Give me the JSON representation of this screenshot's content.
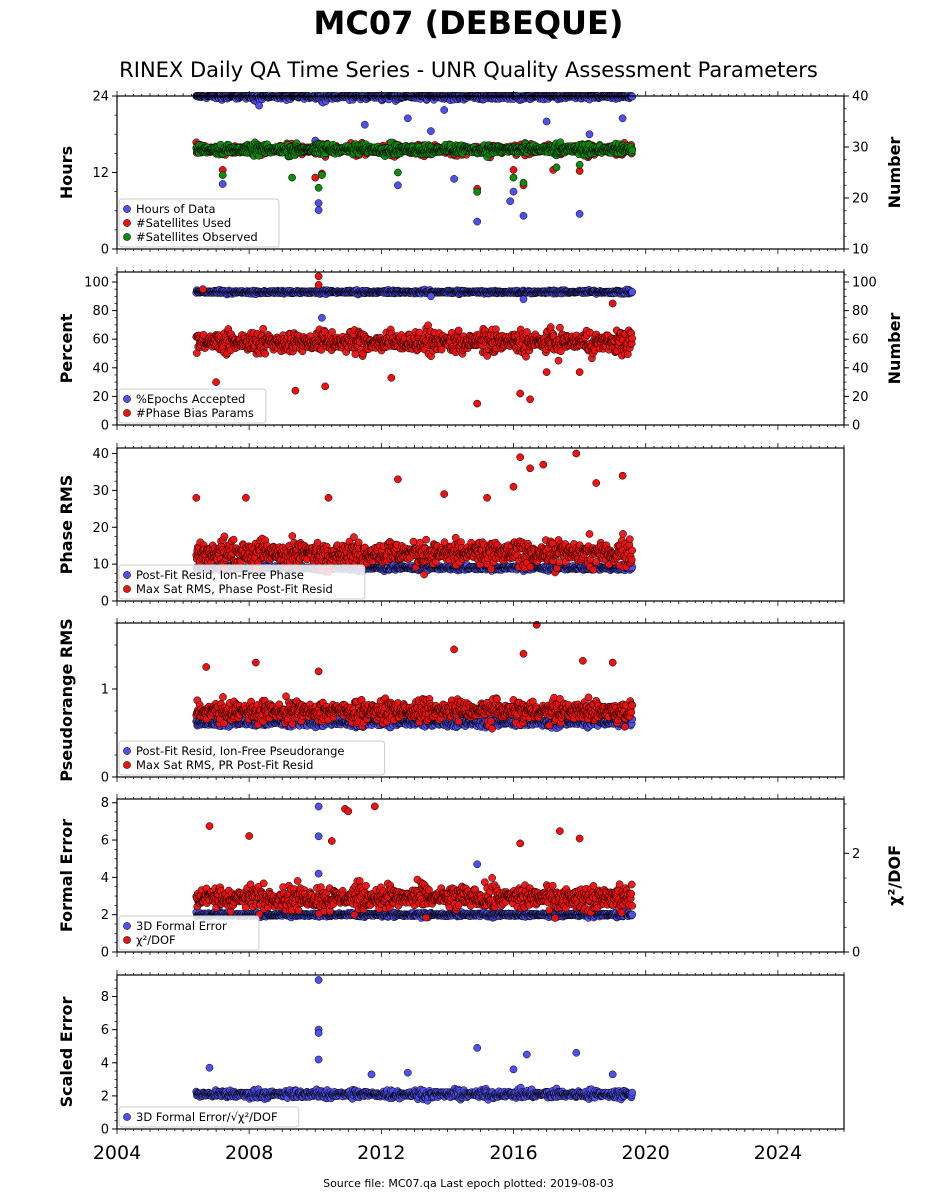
{
  "title": "MC07 (DEBEQUE)",
  "subtitle": "RINEX Daily QA Time Series - UNR Quality Assessment Parameters",
  "footer": "Source file: MC07.qa Last epoch plotted: 2019-08-03",
  "colors": {
    "blue": "#5050f0",
    "red": "#ee1111",
    "green": "#0e8a0e",
    "edge": "#000000"
  },
  "chart_data": [
    {
      "type": "scatter",
      "ylabel": "Hours",
      "ylabel_right": "Number",
      "ylim": [
        0,
        24
      ],
      "yticks": [
        0,
        12,
        24
      ],
      "ylim_right": [
        10,
        40
      ],
      "yticks_right": [
        10,
        20,
        30,
        40
      ],
      "legend": "bottom-left",
      "series": [
        {
          "name": "Hours of Data",
          "axis": "left",
          "color": "blue",
          "baseline": 24,
          "spread": 0.6,
          "outliers": [
            [
              2010.1,
              7.2
            ],
            [
              2010.1,
              6.1
            ],
            [
              2014.9,
              4.3
            ],
            [
              2016.3,
              5.2
            ],
            [
              2018.0,
              5.5
            ],
            [
              2007.2,
              10.2
            ],
            [
              2012.5,
              10.0
            ],
            [
              2014.2,
              11.0
            ],
            [
              2016.0,
              9.0
            ],
            [
              2015.9,
              7.5
            ],
            [
              2010.0,
              17.0
            ],
            [
              2011.5,
              19.5
            ],
            [
              2013.5,
              18.5
            ],
            [
              2017.0,
              20.0
            ],
            [
              2018.3,
              18.0
            ],
            [
              2019.3,
              20.5
            ],
            [
              2008.3,
              22.5
            ],
            [
              2013.9,
              21.8
            ],
            [
              2012.8,
              20.5
            ]
          ]
        },
        {
          "name": "#Satellites Used",
          "axis": "right",
          "color": "red",
          "baseline": 29.5,
          "spread": 1.0,
          "outliers": [
            [
              2007.2,
              25.5
            ],
            [
              2010.2,
              24.8
            ],
            [
              2014.9,
              21.8
            ],
            [
              2016.0,
              25.5
            ],
            [
              2016.3,
              22.5
            ],
            [
              2017.2,
              25.5
            ],
            [
              2018.0,
              25.3
            ],
            [
              2010.0,
              24.0
            ]
          ]
        },
        {
          "name": "#Satellites Observed",
          "axis": "right",
          "color": "green",
          "baseline": 29.5,
          "spread": 1.0,
          "outliers": [
            [
              2007.2,
              24.5
            ],
            [
              2009.3,
              24.0
            ],
            [
              2010.2,
              24.5
            ],
            [
              2012.5,
              25.0
            ],
            [
              2014.9,
              21.2
            ],
            [
              2016.0,
              24.0
            ],
            [
              2016.3,
              23.0
            ],
            [
              2017.3,
              26.0
            ],
            [
              2018.0,
              26.5
            ],
            [
              2010.1,
              22.0
            ]
          ]
        }
      ]
    },
    {
      "type": "scatter",
      "ylabel": "Percent",
      "ylabel_right": "Number",
      "ylim": [
        0,
        107
      ],
      "yticks": [
        0,
        20,
        40,
        60,
        80,
        100
      ],
      "ylim_right": [
        0,
        107
      ],
      "yticks_right": [
        0,
        20,
        40,
        60,
        80,
        100
      ],
      "legend": "bottom-left",
      "series": [
        {
          "name": "%Epochs Accepted",
          "axis": "left",
          "color": "blue",
          "baseline": 93,
          "spread": 1.2,
          "outliers": [
            [
              2010.2,
              75
            ],
            [
              2013.5,
              90
            ],
            [
              2016.3,
              88
            ]
          ]
        },
        {
          "name": "#Phase Bias Params",
          "axis": "right",
          "color": "red",
          "baseline": 58,
          "spread": 8,
          "outliers": [
            [
              2010.1,
              104
            ],
            [
              2007.0,
              30
            ],
            [
              2009.4,
              24
            ],
            [
              2010.3,
              27
            ],
            [
              2012.3,
              33
            ],
            [
              2014.9,
              15
            ],
            [
              2016.2,
              22
            ],
            [
              2016.5,
              18
            ],
            [
              2017.0,
              37
            ],
            [
              2018.0,
              37
            ],
            [
              2006.6,
              95
            ],
            [
              2019.0,
              85
            ],
            [
              2010.1,
              98
            ]
          ]
        }
      ]
    },
    {
      "type": "scatter",
      "ylabel": "Phase RMS",
      "ylim": [
        0,
        41.5
      ],
      "yticks": [
        0,
        10,
        20,
        30,
        40
      ],
      "legend": "bottom-left",
      "series": [
        {
          "name": "Post-Fit Resid, Ion-Free Phase",
          "axis": "left",
          "color": "blue",
          "baseline": 9,
          "spread": 0.7,
          "outliers": []
        },
        {
          "name": "Max Sat RMS, Phase Post-Fit Resid",
          "axis": "left",
          "color": "red",
          "baseline": 13,
          "spread": 3.5,
          "outliers": [
            [
              2006.4,
              28
            ],
            [
              2007.9,
              28
            ],
            [
              2010.4,
              28
            ],
            [
              2012.5,
              33
            ],
            [
              2013.9,
              29
            ],
            [
              2015.2,
              28
            ],
            [
              2016.2,
              39
            ],
            [
              2016.5,
              36
            ],
            [
              2016.9,
              37
            ],
            [
              2017.9,
              40
            ],
            [
              2018.5,
              32
            ],
            [
              2019.3,
              34
            ],
            [
              2016.0,
              31
            ]
          ]
        }
      ]
    },
    {
      "type": "scatter",
      "ylabel": "Pseudorange RMS",
      "ylim": [
        0,
        1.75
      ],
      "yticks": [
        0,
        1
      ],
      "legend": "bottom-left",
      "series": [
        {
          "name": "Post-Fit Resid, Ion-Free Pseudorange",
          "axis": "left",
          "color": "blue",
          "baseline": 0.62,
          "spread": 0.05,
          "outliers": []
        },
        {
          "name": "Max Sat RMS, PR Post-Fit Resid",
          "axis": "left",
          "color": "red",
          "baseline": 0.75,
          "spread": 0.12,
          "outliers": [
            [
              2006.7,
              1.25
            ],
            [
              2008.2,
              1.3
            ],
            [
              2010.1,
              1.2
            ],
            [
              2014.2,
              1.45
            ],
            [
              2016.3,
              1.4
            ],
            [
              2016.7,
              1.73
            ],
            [
              2018.1,
              1.32
            ],
            [
              2019.0,
              1.3
            ]
          ]
        }
      ]
    },
    {
      "type": "scatter",
      "ylabel": "Formal Error",
      "ylabel_right": "χ²/DOF",
      "ylim": [
        0,
        8.2
      ],
      "yticks": [
        0,
        2,
        4,
        6,
        8
      ],
      "ylim_right": [
        0,
        3.1
      ],
      "yticks_right": [
        0,
        2
      ],
      "legend": "bottom-left",
      "series": [
        {
          "name": "3D Formal Error",
          "axis": "left",
          "color": "blue",
          "baseline": 2.0,
          "spread": 0.12,
          "outliers": [
            [
              2010.1,
              7.8
            ],
            [
              2010.1,
              6.2
            ],
            [
              2010.1,
              4.2
            ],
            [
              2014.9,
              4.7
            ]
          ]
        },
        {
          "name": "χ²/DOF",
          "axis": "right",
          "color": "red",
          "baseline": 1.1,
          "spread": 0.25,
          "outliers": [
            [
              2006.8,
              2.55
            ],
            [
              2008.0,
              2.35
            ],
            [
              2010.9,
              2.9
            ],
            [
              2011.0,
              2.85
            ],
            [
              2011.8,
              2.95
            ],
            [
              2010.5,
              2.25
            ],
            [
              2016.2,
              2.2
            ],
            [
              2017.4,
              2.45
            ],
            [
              2018.0,
              2.3
            ]
          ]
        }
      ]
    },
    {
      "type": "scatter",
      "ylabel": "Scaled Error",
      "ylim": [
        0,
        9.3
      ],
      "yticks": [
        0,
        2,
        4,
        6,
        8
      ],
      "legend": "bottom-left",
      "series": [
        {
          "name": "3D Formal Error/√χ²/DOF",
          "axis": "left",
          "color": "blue",
          "baseline": 2.1,
          "spread": 0.25,
          "outliers": [
            [
              2010.1,
              9.0
            ],
            [
              2010.1,
              6.0
            ],
            [
              2010.1,
              5.8
            ],
            [
              2010.1,
              4.2
            ],
            [
              2014.9,
              4.9
            ],
            [
              2016.4,
              4.5
            ],
            [
              2017.9,
              4.6
            ],
            [
              2006.8,
              3.7
            ],
            [
              2016.0,
              3.6
            ],
            [
              2019.0,
              3.3
            ],
            [
              2011.7,
              3.3
            ],
            [
              2012.8,
              3.4
            ]
          ]
        }
      ]
    }
  ],
  "shared_x": {
    "xlim": [
      2004,
      2026
    ],
    "ticks": [
      2004,
      2008,
      2012,
      2016,
      2020,
      2024
    ],
    "data_range": [
      2006.4,
      2019.59
    ]
  }
}
